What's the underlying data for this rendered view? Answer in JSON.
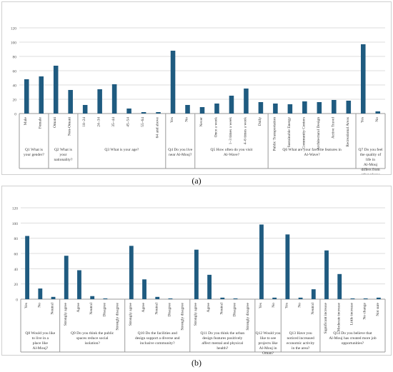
{
  "chart_data": [
    {
      "type": "bar",
      "panel_label": "(a)",
      "ylim": [
        0,
        120
      ],
      "yticks": [
        0,
        20,
        40,
        60,
        80,
        100,
        120
      ],
      "grid": true,
      "color": "#1f5b80",
      "groups": [
        {
          "label": "Q1 What is your gender?",
          "categories": [
            "Male",
            "Female"
          ],
          "values": [
            48,
            52
          ]
        },
        {
          "label": "Q2 What is your nationality?",
          "categories": [
            "Omani",
            "Non-Omani"
          ],
          "values": [
            67,
            33
          ]
        },
        {
          "label": "Q3 What is your age?",
          "categories": [
            "18–24",
            "24–34",
            "35–44",
            "45–54",
            "55–64",
            "64 and above"
          ],
          "values": [
            12,
            34,
            41,
            7,
            2,
            2
          ]
        },
        {
          "label": "Q4 Do you live near Al-Mouj?",
          "categories": [
            "Yes",
            "No"
          ],
          "values": [
            88,
            12
          ]
        },
        {
          "label": "Q5 How often do you visit Al-Wave?",
          "categories": [
            "Never",
            "Once a week",
            "1–3 times a week",
            "4–6 times a week",
            "Daily"
          ],
          "values": [
            9,
            14,
            25,
            35,
            16
          ]
        },
        {
          "label": "Q6 What are your favorite features in Al-Wave?",
          "categories": [
            "Public Transportation",
            "Sustainable Energy",
            "Community Centers",
            "Architectural Design",
            "Active Travel",
            "Recreational Areas"
          ],
          "values": [
            14,
            13,
            17,
            16,
            19,
            18
          ]
        },
        {
          "label": "Q7 Do you feel the quality of life in Al-Mouj differs from other places in Oman?",
          "categories": [
            "Yes",
            "No"
          ],
          "values": [
            97,
            3
          ]
        }
      ]
    },
    {
      "type": "bar",
      "panel_label": "(b)",
      "ylim": [
        0,
        120
      ],
      "yticks": [
        0,
        20,
        40,
        60,
        80,
        100,
        120
      ],
      "grid": true,
      "color": "#1f5b80",
      "groups": [
        {
          "label": "Q8 Would you like to live in a place like Al-Mouj?",
          "categories": [
            "Yes",
            "No",
            "Neutral"
          ],
          "values": [
            83,
            14,
            3
          ]
        },
        {
          "label": "Q9 Do you think the public spaces reduce social isolation?",
          "categories": [
            "Strongly agree",
            "Agree",
            "Neutral",
            "Disagree",
            "Strongly disagree"
          ],
          "values": [
            57,
            38,
            4,
            1,
            0
          ]
        },
        {
          "label": "Q10 Do the facilities and design support a diverse and inclusive community?",
          "categories": [
            "Strongly agree",
            "Agree",
            "Neutral",
            "Disagree",
            "Strongly disagree"
          ],
          "values": [
            70,
            26,
            3,
            1,
            0
          ]
        },
        {
          "label": "Q11 Do you think the urban design features positively affect mental and physical health?",
          "categories": [
            "Strongly agree",
            "Agree",
            "Neutral",
            "Disagree",
            "Strongly disagree"
          ],
          "values": [
            65,
            32,
            2,
            1,
            0
          ]
        },
        {
          "label": "Q12 Would you like to see projects like Al-Mouj in Oman?",
          "categories": [
            "Yes",
            "No"
          ],
          "values": [
            98,
            2
          ]
        },
        {
          "label": "Q13 Have you noticed increased economic activity in the area?",
          "categories": [
            "Yes",
            "No",
            "Neutral"
          ],
          "values": [
            85,
            2,
            13
          ]
        },
        {
          "label": "Q14 Do you believe that Al-Mouj has created more job opportunities?",
          "categories": [
            "Significant increase",
            "Moderate increase",
            "Little increase",
            "No change",
            "Not sure"
          ],
          "values": [
            64,
            33,
            1,
            1,
            2
          ]
        }
      ]
    }
  ]
}
